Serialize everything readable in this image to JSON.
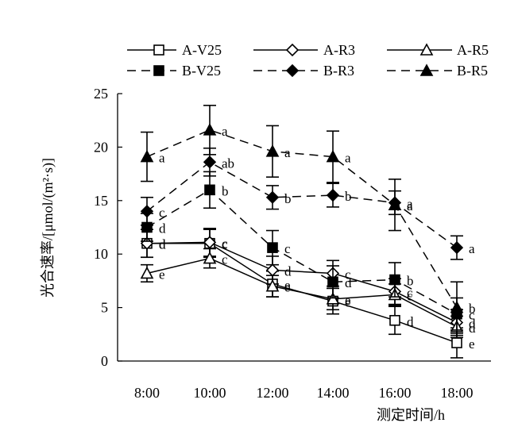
{
  "chart_data": {
    "type": "line",
    "ylabel": "光合速率/[μmol/(m²·s)]",
    "xlabel": "测定时间/h",
    "categories": [
      "8:00",
      "10:00",
      "12:00",
      "14:00",
      "16:00",
      "18:00"
    ],
    "ylim": [
      0,
      25
    ],
    "yticks": [
      "0",
      "5",
      "10",
      "15",
      "20",
      "25"
    ],
    "legend_position": "top",
    "series": [
      {
        "name": "A-V25",
        "dash": "solid",
        "marker": "square",
        "fill": "white",
        "values": [
          11.0,
          11.0,
          7.2,
          5.6,
          3.8,
          1.7
        ],
        "errors": [
          1.3,
          1.3,
          1.2,
          1.2,
          1.3,
          1.4
        ],
        "letters": [
          "d",
          "c",
          "e",
          "e",
          "d",
          "e"
        ]
      },
      {
        "name": "A-R3",
        "dash": "solid",
        "marker": "diamond",
        "fill": "white",
        "values": [
          11.0,
          11.1,
          8.5,
          8.2,
          6.5,
          3.6
        ],
        "errors": [
          1.3,
          1.3,
          1.3,
          1.2,
          1.2,
          1.2
        ],
        "letters": [
          "d",
          "c",
          "d",
          "c",
          "c",
          "d"
        ]
      },
      {
        "name": "A-R5",
        "dash": "solid",
        "marker": "triangle",
        "fill": "white",
        "values": [
          8.2,
          9.6,
          7.0,
          5.8,
          6.2,
          3.2
        ],
        "errors": [
          0.8,
          0.9,
          1.0,
          1.0,
          1.0,
          1.0
        ],
        "letters": [
          "e",
          "c",
          "e",
          "e",
          "c",
          "d"
        ]
      },
      {
        "name": "B-V25",
        "dash": "dashed",
        "marker": "square",
        "fill": "black",
        "values": [
          12.5,
          16.0,
          10.6,
          7.4,
          7.6,
          4.4
        ],
        "errors": [
          1.3,
          1.7,
          1.6,
          1.5,
          1.6,
          1.5
        ],
        "letters": [
          "d",
          "b",
          "c",
          "d",
          "b",
          "c"
        ]
      },
      {
        "name": "B-R3",
        "dash": "dashed",
        "marker": "diamond",
        "fill": "black",
        "values": [
          14.0,
          18.6,
          15.3,
          15.5,
          14.8,
          10.6
        ],
        "errors": [
          1.3,
          1.3,
          1.1,
          1.1,
          1.1,
          1.1
        ],
        "letters": [
          "c",
          "ab",
          "b",
          "b",
          "a",
          "a"
        ]
      },
      {
        "name": "B-R5",
        "dash": "dashed",
        "marker": "triangle",
        "fill": "black",
        "values": [
          19.1,
          21.6,
          19.6,
          19.1,
          14.6,
          5.0
        ],
        "errors": [
          2.3,
          2.3,
          2.4,
          2.4,
          2.4,
          2.4
        ],
        "letters": [
          "a",
          "a",
          "a",
          "a",
          "a",
          "b"
        ]
      }
    ]
  }
}
